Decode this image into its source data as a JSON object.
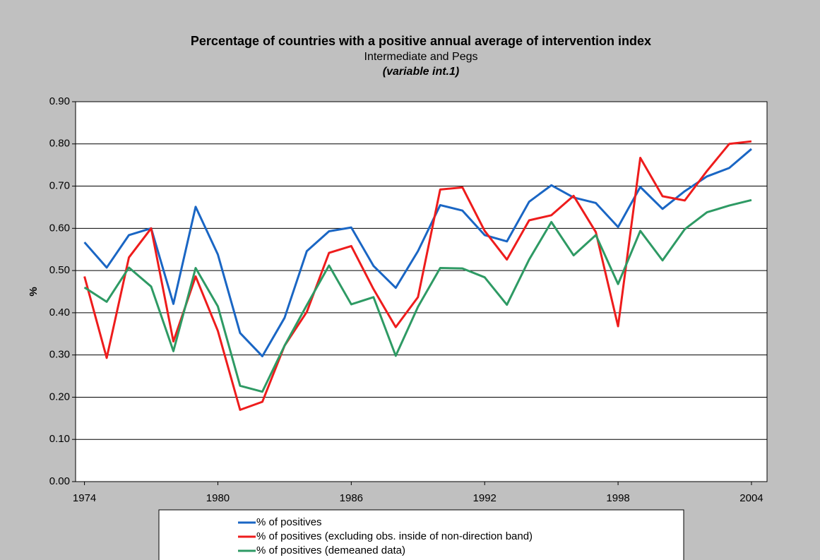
{
  "chart_data": {
    "type": "line",
    "title": "Percentage of countries with a positive annual average of intervention index",
    "subtitle": "Intermediate and Pegs",
    "annotation": "(variable int.1)",
    "y_label": "%",
    "x": [
      1974,
      1975,
      1976,
      1977,
      1978,
      1979,
      1980,
      1981,
      1982,
      1983,
      1984,
      1985,
      1986,
      1987,
      1988,
      1989,
      1990,
      1991,
      1992,
      1993,
      1994,
      1995,
      1996,
      1997,
      1998,
      1999,
      2000,
      2001,
      2002,
      2003,
      2004
    ],
    "series": [
      {
        "name": "% of positives",
        "color": "#1a66c4",
        "values": [
          0.567,
          0.507,
          0.584,
          0.6,
          0.421,
          0.651,
          0.538,
          0.352,
          0.297,
          0.388,
          0.546,
          0.593,
          0.602,
          0.511,
          0.459,
          0.546,
          0.655,
          0.642,
          0.584,
          0.569,
          0.663,
          0.702,
          0.673,
          0.66,
          0.603,
          0.698,
          0.646,
          0.688,
          0.723,
          0.743,
          0.788
        ]
      },
      {
        "name": "% of positives (excluding obs. inside of non-direction band)",
        "color": "#ee1c1c",
        "values": [
          0.486,
          0.293,
          0.531,
          0.6,
          0.332,
          0.486,
          0.357,
          0.17,
          0.189,
          0.322,
          0.402,
          0.542,
          0.558,
          0.456,
          0.366,
          0.437,
          0.692,
          0.697,
          0.594,
          0.526,
          0.619,
          0.631,
          0.677,
          0.591,
          0.368,
          0.767,
          0.676,
          0.666,
          0.736,
          0.8,
          0.806
        ]
      },
      {
        "name": "% of positives (demeaned data)",
        "color": "#2e9a64",
        "values": [
          0.46,
          0.426,
          0.507,
          0.462,
          0.309,
          0.506,
          0.415,
          0.227,
          0.213,
          0.322,
          0.418,
          0.512,
          0.42,
          0.437,
          0.298,
          0.414,
          0.506,
          0.505,
          0.484,
          0.419,
          0.526,
          0.615,
          0.536,
          0.584,
          0.468,
          0.594,
          0.524,
          0.598,
          0.638,
          0.654,
          0.667
        ]
      }
    ],
    "xlim": [
      1973.6,
      2004.7
    ],
    "xticks": [
      1974,
      1980,
      1986,
      1992,
      1998,
      2004
    ],
    "ylim": [
      0,
      0.9
    ],
    "yticks": [
      {
        "value": 0,
        "label": "0.00"
      },
      {
        "value": 0.1,
        "label": "0.10"
      },
      {
        "value": 0.2,
        "label": "0.20"
      },
      {
        "value": 0.3,
        "label": "0.30"
      },
      {
        "value": 0.4,
        "label": "0.40"
      },
      {
        "value": 0.5,
        "label": "0.50"
      },
      {
        "value": 0.6,
        "label": "0.60"
      },
      {
        "value": 0.7,
        "label": "0.70"
      },
      {
        "value": 0.8,
        "label": "0.80"
      },
      {
        "value": 0.9,
        "label": "0.90"
      }
    ],
    "grid": true,
    "legend": "bottom"
  }
}
